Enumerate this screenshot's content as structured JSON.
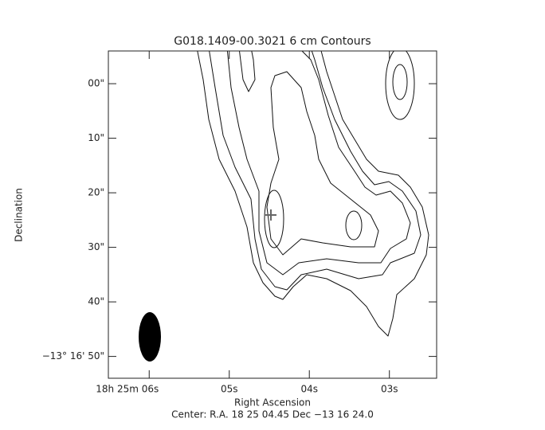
{
  "chart_data": {
    "type": "contour",
    "title": "G018.1409-00.3021 6 cm Contours",
    "x_label": "Right Ascension",
    "y_label": "Declination",
    "footer": "Center:  R.A. 18 25 04.45    Dec  −13 16 24.0",
    "xlim": [
      6.51,
      2.41
    ],
    "ylim": [
      54,
      -6
    ],
    "xticks": [
      {
        "value": 6,
        "label": "18h 25m 06s"
      },
      {
        "value": 5,
        "label": "05s"
      },
      {
        "value": 4,
        "label": "04s"
      },
      {
        "value": 3,
        "label": "03s"
      }
    ],
    "yticks": [
      {
        "value": 0,
        "label": "00\""
      },
      {
        "value": 10,
        "label": "10\""
      },
      {
        "value": 20,
        "label": "20\""
      },
      {
        "value": 30,
        "label": "30\""
      },
      {
        "value": 40,
        "label": "40\""
      },
      {
        "value": 50,
        "label": "−13° 16' 50\""
      }
    ]
  }
}
